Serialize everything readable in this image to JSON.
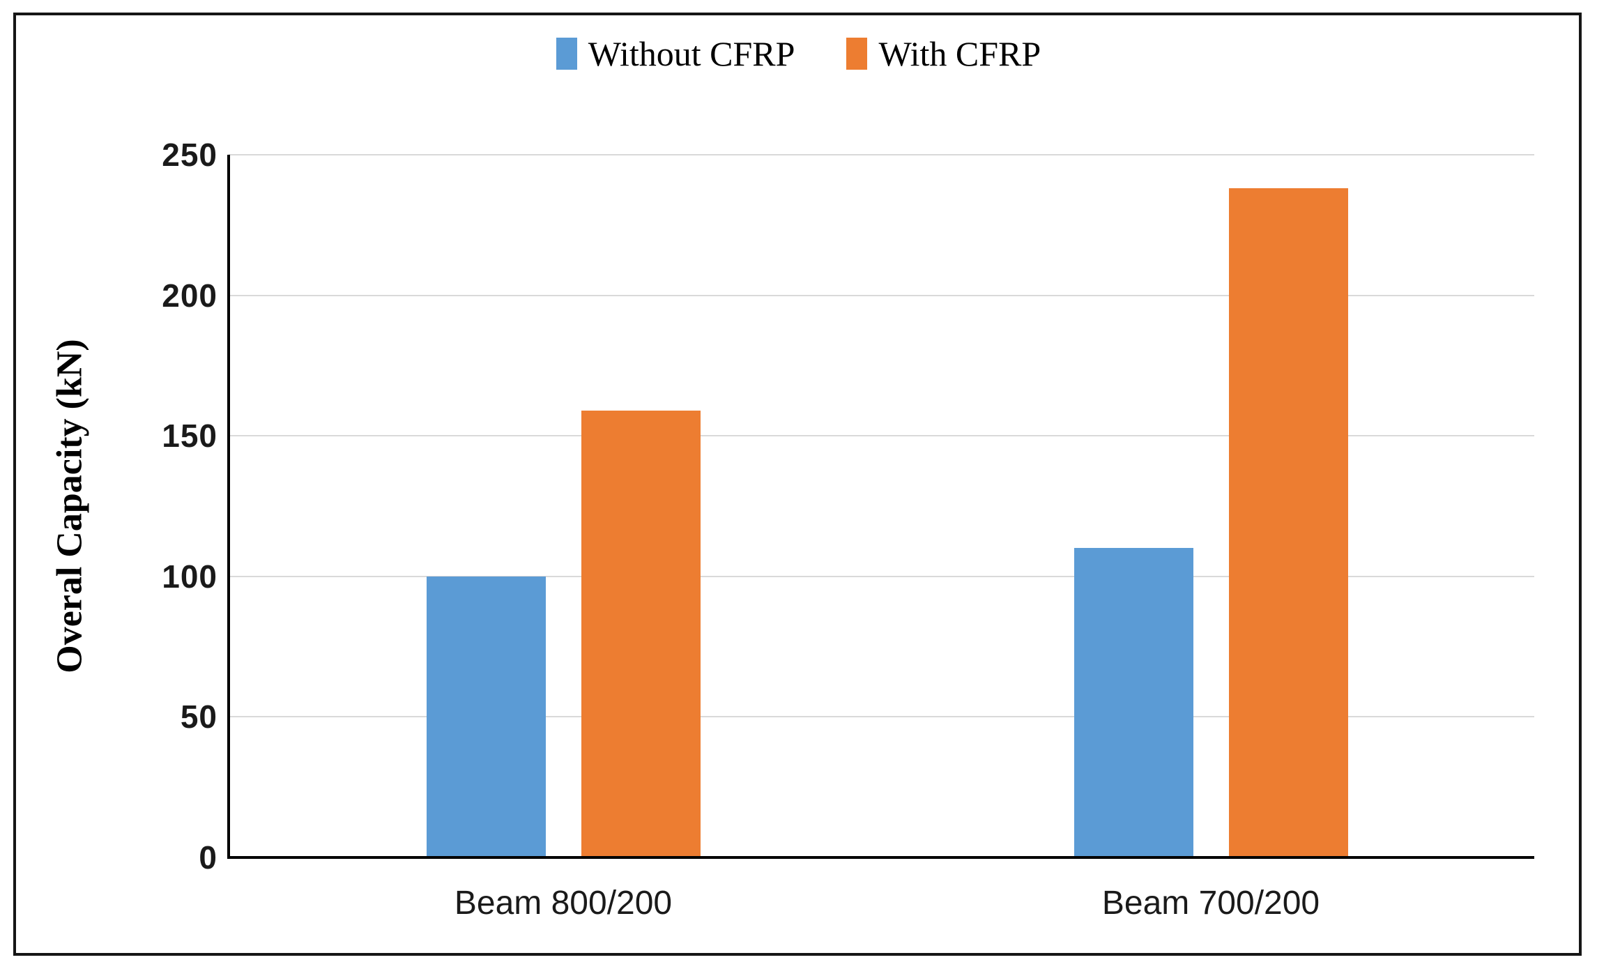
{
  "chart_data": {
    "type": "bar",
    "title": "",
    "categories": [
      "Beam 800/200",
      "Beam 700/200"
    ],
    "series": [
      {
        "name": "Without CFRP",
        "color": "#5B9BD5",
        "values": [
          100,
          110
        ]
      },
      {
        "name": "With CFRP",
        "color": "#ED7D31",
        "values": [
          159,
          238
        ]
      }
    ],
    "xlabel": "",
    "ylabel": "Overal Capacity (kN)",
    "ylim": [
      0,
      250
    ],
    "yticks": [
      0,
      50,
      100,
      150,
      200,
      250
    ],
    "grid": "horizontal-light-gray",
    "gridline_color": "#D9D9D9",
    "axis_color": "#000000",
    "legend_position": "top-center",
    "frame_border_color": "#161616"
  }
}
